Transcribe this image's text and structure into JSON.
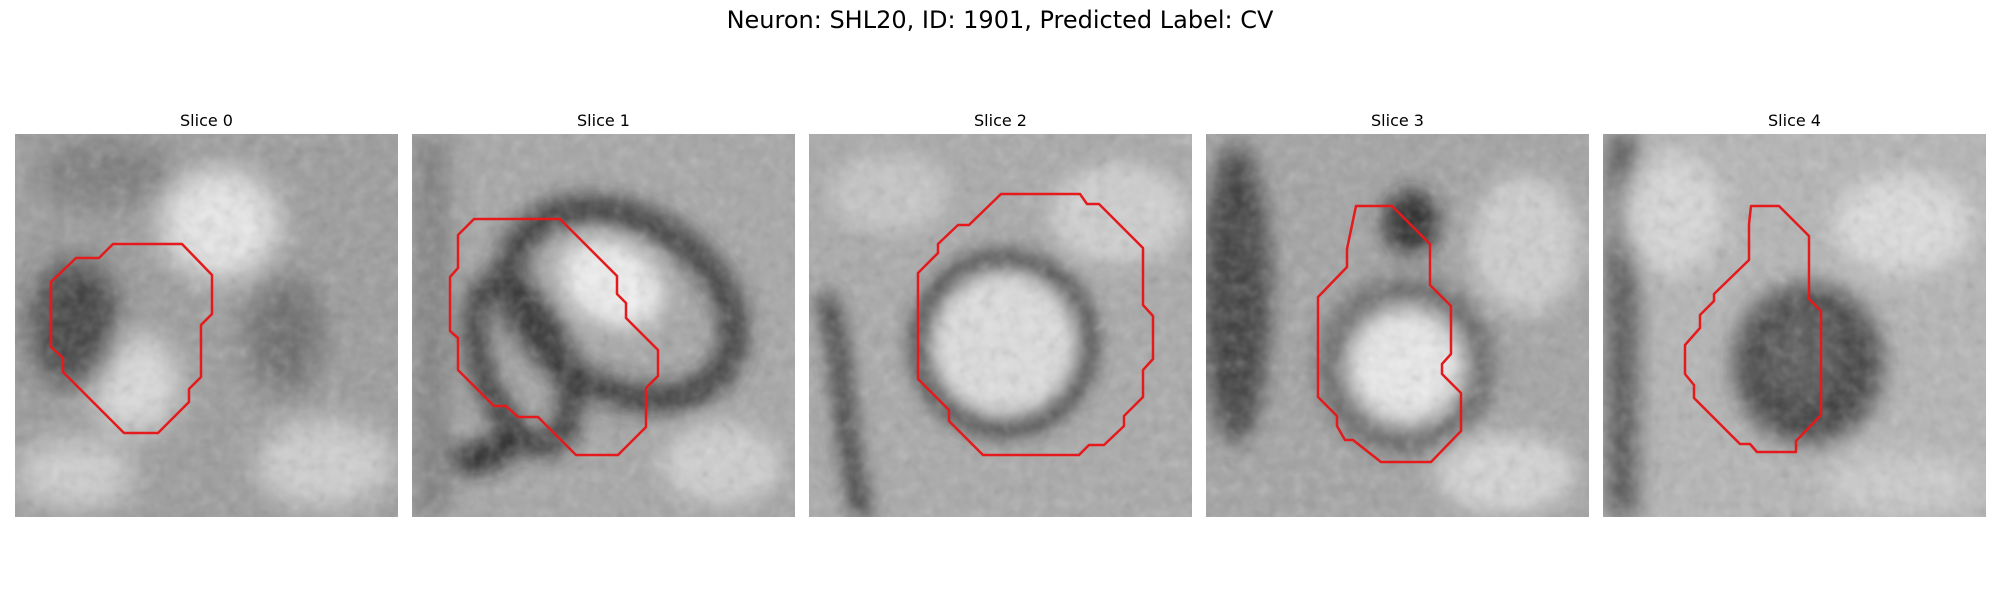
{
  "figure": {
    "title": "Neuron: SHL20, ID: 1901, Predicted Label: CV"
  },
  "panels": [
    {
      "title": "Slice 0"
    },
    {
      "title": "Slice 1"
    },
    {
      "title": "Slice 2"
    },
    {
      "title": "Slice 3"
    },
    {
      "title": "Slice 4"
    }
  ],
  "style": {
    "contour_color": "#e41a1c"
  }
}
